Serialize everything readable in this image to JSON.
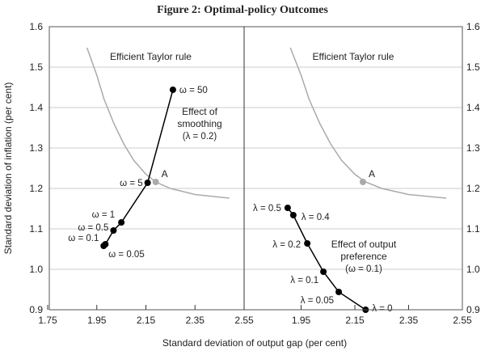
{
  "chart_data": [
    {
      "type": "line",
      "panel": "left",
      "title": "Figure 2: Optimal-policy Outcomes",
      "xlabel": "Standard deviation of output gap (per cent)",
      "ylabel": "Standard deviation of inflation (per cent)",
      "xlim": [
        1.75,
        2.55
      ],
      "ylim": [
        0.9,
        1.6
      ],
      "xticks": [
        "1.75",
        "1.95",
        "2.15",
        "2.35",
        "2.55"
      ],
      "yticks": [
        "0.9",
        "1.0",
        "1.1",
        "1.2",
        "1.3",
        "1.4",
        "1.5",
        "1.6"
      ],
      "grid": "horizontal",
      "curve_label": "Efficient Taylor rule",
      "curve": [
        [
          1.91,
          1.548
        ],
        [
          1.95,
          1.48
        ],
        [
          1.98,
          1.42
        ],
        [
          2.02,
          1.36
        ],
        [
          2.06,
          1.31
        ],
        [
          2.1,
          1.27
        ],
        [
          2.15,
          1.235
        ],
        [
          2.19,
          1.216
        ],
        [
          2.25,
          1.2
        ],
        [
          2.35,
          1.185
        ],
        [
          2.49,
          1.176
        ]
      ],
      "point_A": {
        "label": "A",
        "x": 2.19,
        "y": 1.216
      },
      "annotation": [
        "Effect of",
        "smoothing",
        "(λ = 0.2)"
      ],
      "series": [
        {
          "name": "smoothing",
          "points": [
            {
              "label": "ω = 0.05",
              "x": 1.978,
              "y": 1.058
            },
            {
              "label": "ω = 0.1",
              "x": 1.985,
              "y": 1.062
            },
            {
              "label": "ω = 0.5",
              "x": 2.018,
              "y": 1.096
            },
            {
              "label": "ω = 1",
              "x": 2.05,
              "y": 1.116
            },
            {
              "label": "ω = 5",
              "x": 2.157,
              "y": 1.214
            },
            {
              "label": "ω = 50",
              "x": 2.26,
              "y": 1.444
            }
          ]
        }
      ]
    },
    {
      "type": "line",
      "panel": "right",
      "xlim": [
        1.75,
        2.55
      ],
      "ylim": [
        0.9,
        1.6
      ],
      "xticks": [
        "1.95",
        "2.15",
        "2.35",
        "2.55"
      ],
      "yticks": [
        "0.9",
        "1.0",
        "1.1",
        "1.2",
        "1.3",
        "1.4",
        "1.5",
        "1.6"
      ],
      "curve_label": "Efficient Taylor rule",
      "point_A": {
        "label": "A",
        "x": 2.18,
        "y": 1.216
      },
      "annotation": [
        "Effect of output",
        "preference",
        "(ω = 0.1)"
      ],
      "series": [
        {
          "name": "output preference",
          "points": [
            {
              "label": "λ = 0.5",
              "x": 1.9,
              "y": 1.152
            },
            {
              "label": "λ = 0.4",
              "x": 1.921,
              "y": 1.134
            },
            {
              "label": "λ = 0.2",
              "x": 1.973,
              "y": 1.064
            },
            {
              "label": "λ = 0.1",
              "x": 2.033,
              "y": 0.994
            },
            {
              "label": "λ = 0.05",
              "x": 2.09,
              "y": 0.944
            },
            {
              "label": "λ = 0",
              "x": 2.19,
              "y": 0.9
            }
          ]
        }
      ]
    }
  ]
}
